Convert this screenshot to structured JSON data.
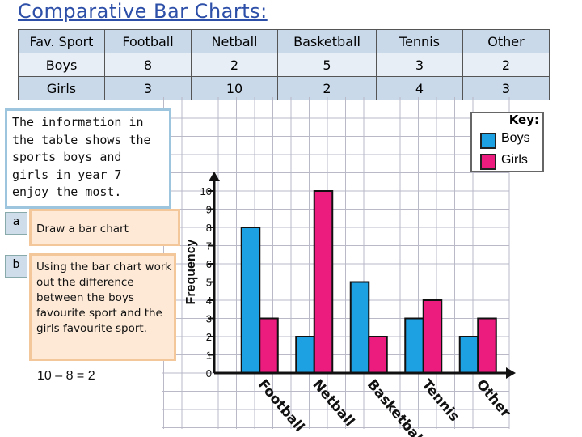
{
  "title": "Comparative Bar Charts:",
  "table": {
    "header": [
      "Fav. Sport",
      "Football",
      "Netball",
      "Basketball",
      "Tennis",
      "Other"
    ],
    "rows": [
      [
        "Boys",
        "8",
        "2",
        "5",
        "3",
        "2"
      ],
      [
        "Girls",
        "3",
        "10",
        "2",
        "4",
        "3"
      ]
    ]
  },
  "info_text": "The information in the table shows the sports boys and girls in year 7 enjoy the most.",
  "question_a": {
    "label": "a",
    "text": "Draw a bar chart"
  },
  "question_b": {
    "label": "b",
    "text": "Using the bar chart work out the difference between the boys favourite sport and the girls favourite sport."
  },
  "answer": "10 – 8 = 2",
  "key": {
    "title": "Key:",
    "boys": "Boys",
    "girls": "Girls"
  },
  "colors": {
    "boys": "#1da1e2",
    "girls": "#ec1b7e",
    "grid": "#b9b9c8",
    "title": "#2d4fa8"
  },
  "chart_data": {
    "type": "bar",
    "ylabel": "Frequency",
    "xlabel": "",
    "categories": [
      "Football",
      "Netball",
      "Basketball",
      "Tennis",
      "Other"
    ],
    "series": [
      {
        "name": "Boys",
        "values": [
          8,
          2,
          5,
          3,
          2
        ]
      },
      {
        "name": "Girls",
        "values": [
          3,
          10,
          2,
          4,
          3
        ]
      }
    ],
    "ylim": [
      0,
      10
    ],
    "yticks": [
      0,
      1,
      2,
      3,
      4,
      5,
      6,
      7,
      8,
      9,
      10
    ],
    "grid": true,
    "legend": "top-right"
  }
}
